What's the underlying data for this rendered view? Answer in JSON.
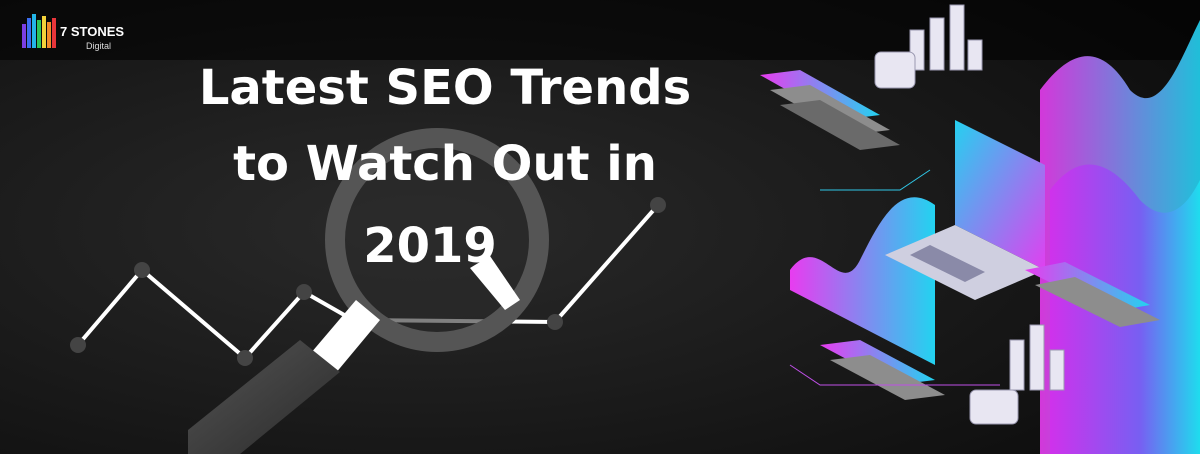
{
  "logo": {
    "name": "7 STONES",
    "tagline": "Digital"
  },
  "headline": {
    "lines": [
      "Latest SEO Trends",
      "to Watch Out in",
      "2019"
    ]
  }
}
